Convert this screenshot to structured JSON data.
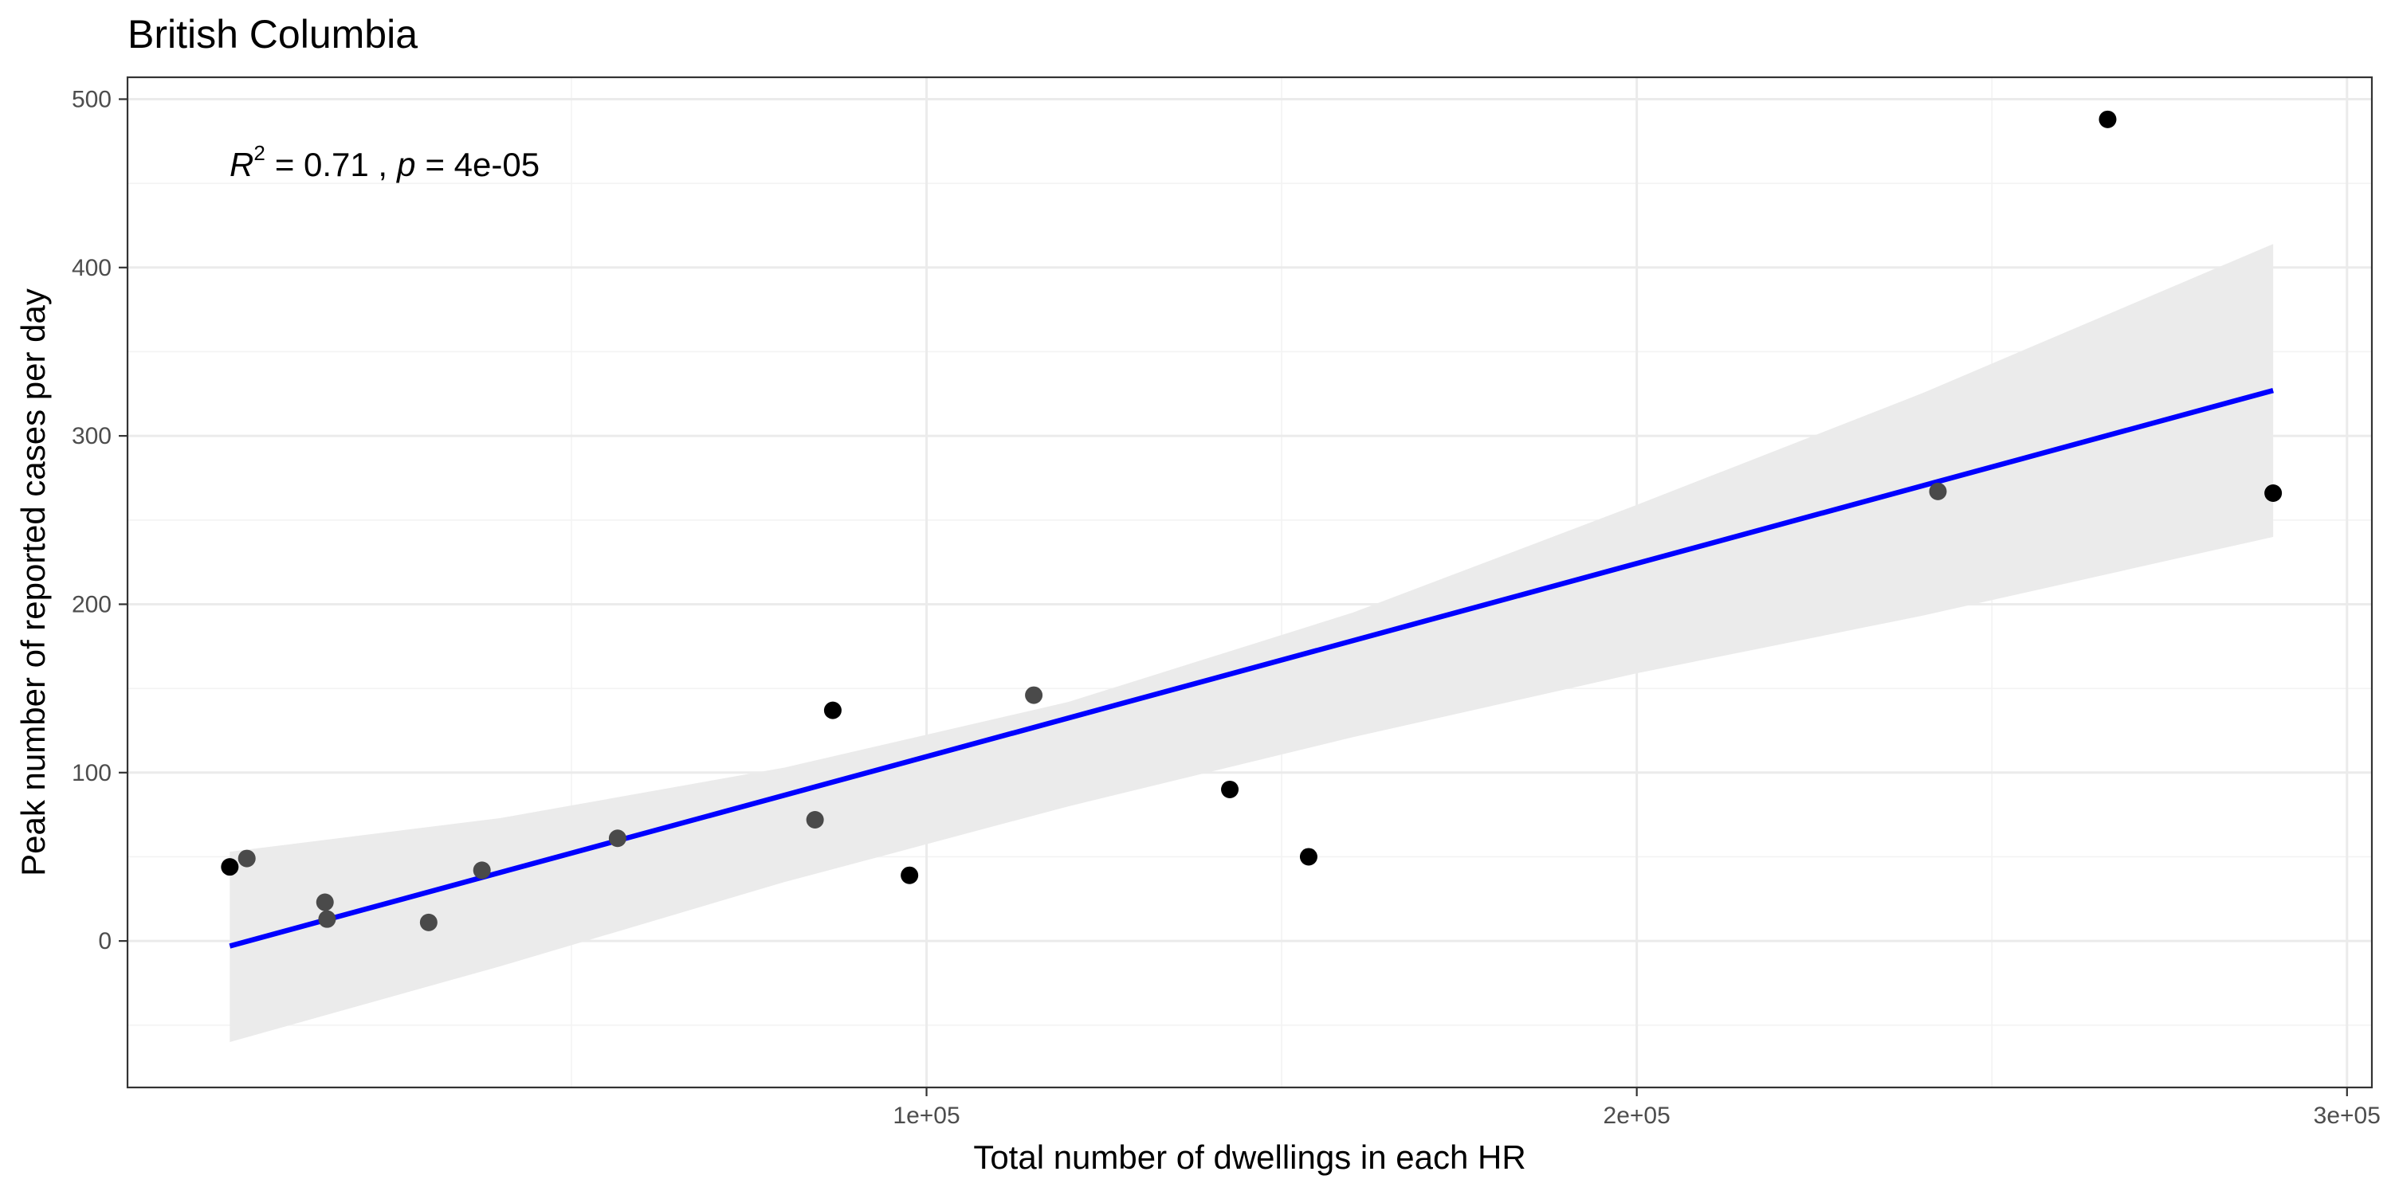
{
  "chart_data": {
    "type": "scatter",
    "title": "British Columbia",
    "xlabel": "Total number of dwellings in each HR",
    "ylabel": "Peak number of reported cases per day",
    "xlim": [
      -12500,
      303500
    ],
    "ylim": [
      -87,
      513
    ],
    "x_ticks": [
      {
        "value": 100000,
        "label": "1e+05"
      },
      {
        "value": 200000,
        "label": "2e+05"
      },
      {
        "value": 300000,
        "label": "3e+05"
      }
    ],
    "x_minor_ticks": [
      50000,
      150000,
      250000
    ],
    "y_ticks": [
      {
        "value": 0,
        "label": "0"
      },
      {
        "value": 100,
        "label": "100"
      },
      {
        "value": 200,
        "label": "200"
      },
      {
        "value": 300,
        "label": "300"
      },
      {
        "value": 400,
        "label": "400"
      },
      {
        "value": 500,
        "label": "500"
      }
    ],
    "y_minor_ticks": [
      -50,
      50,
      150,
      250,
      350,
      450
    ],
    "grid": true,
    "annotation": {
      "r_symbol": "R",
      "r_exponent": "2",
      "r_value": "= 0.71 ,",
      "p_symbol": "p",
      "p_value": "= 4e-05"
    },
    "points": [
      {
        "x": 1900,
        "y": 44,
        "color": "#000000"
      },
      {
        "x": 4300,
        "y": 49,
        "color": "#4a4a4a"
      },
      {
        "x": 15300,
        "y": 23,
        "color": "#4a4a4a"
      },
      {
        "x": 15600,
        "y": 13,
        "color": "#4a4a4a"
      },
      {
        "x": 29900,
        "y": 11,
        "color": "#4a4a4a"
      },
      {
        "x": 37400,
        "y": 42,
        "color": "#4a4a4a"
      },
      {
        "x": 56500,
        "y": 61,
        "color": "#4a4a4a"
      },
      {
        "x": 84300,
        "y": 72,
        "color": "#4a4a4a"
      },
      {
        "x": 86800,
        "y": 137,
        "color": "#000000"
      },
      {
        "x": 97600,
        "y": 39,
        "color": "#000000"
      },
      {
        "x": 115100,
        "y": 146,
        "color": "#4a4a4a"
      },
      {
        "x": 142700,
        "y": 90,
        "color": "#000000"
      },
      {
        "x": 153800,
        "y": 50,
        "color": "#000000"
      },
      {
        "x": 242400,
        "y": 267,
        "color": "#4a4a4a"
      },
      {
        "x": 266300,
        "y": 488,
        "color": "#000000"
      },
      {
        "x": 289600,
        "y": 266,
        "color": "#000000"
      }
    ],
    "fit": {
      "x": [
        1900,
        289600
      ],
      "y": [
        -3,
        327
      ],
      "color": "#0000ff"
    },
    "confidence_band": {
      "x": [
        1900,
        40000,
        80000,
        120000,
        160000,
        200000,
        240000,
        289600
      ],
      "upper": [
        53,
        73,
        103,
        142,
        195,
        259,
        325,
        414
      ],
      "lower": [
        -60,
        -15,
        35,
        80,
        121,
        159,
        193,
        240
      ],
      "color": "#ebebeb"
    }
  }
}
